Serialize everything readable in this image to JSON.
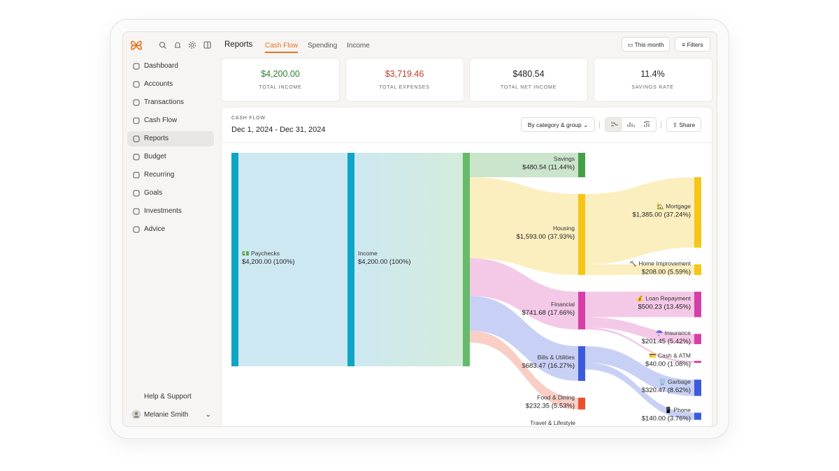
{
  "header": {
    "title": "Reports",
    "tabs": [
      {
        "label": "Cash Flow",
        "active": true
      },
      {
        "label": "Spending",
        "active": false
      },
      {
        "label": "Income",
        "active": false
      }
    ],
    "buttons": [
      "This month",
      "Filters"
    ]
  },
  "sidebar": {
    "items": [
      {
        "label": "Dashboard",
        "active": false
      },
      {
        "label": "Accounts",
        "active": false
      },
      {
        "label": "Transactions",
        "active": false
      },
      {
        "label": "Cash Flow",
        "active": false
      },
      {
        "label": "Reports",
        "active": true
      },
      {
        "label": "Budget",
        "active": false
      },
      {
        "label": "Recurring",
        "active": false
      },
      {
        "label": "Goals",
        "active": false
      },
      {
        "label": "Investments",
        "active": false
      },
      {
        "label": "Advice",
        "active": false
      }
    ],
    "help": "Help & Support",
    "user": "Melanie Smith"
  },
  "stats": [
    {
      "value": "$4,200.00",
      "label": "TOTAL INCOME",
      "color": "#2e7d32"
    },
    {
      "value": "$3,719.46",
      "label": "TOTAL EXPENSES",
      "color": "#c0392b"
    },
    {
      "value": "$480.54",
      "label": "TOTAL NET INCOME",
      "color": "#222222"
    },
    {
      "value": "11.4%",
      "label": "SAVINGS RATE",
      "color": "#222222"
    }
  ],
  "cash_flow": {
    "label": "CASH FLOW",
    "date_range": "Dec 1, 2024 - Dec 31, 2024",
    "group_by": "By category & group",
    "share": "Share",
    "sources": [
      {
        "name": "💵 Paychecks",
        "amount": 4200,
        "label": "$4,200.00 (100%)"
      }
    ],
    "total": {
      "name": "Income",
      "amount": 4200,
      "label": "$4,200.00 (100%)"
    },
    "categories": [
      {
        "name": "Savings",
        "amount": 480.54,
        "label": "$480.54 (11.44%)",
        "color": "#43a047",
        "groups": []
      },
      {
        "name": "Housing",
        "amount": 1593,
        "label": "$1,593.00 (37.93%)",
        "color": "#f5c518",
        "groups": [
          {
            "name": "🏡 Mortgage",
            "amount": 1385,
            "label": "$1,385.00 (37.24%)"
          },
          {
            "name": "🔨 Home Improvement",
            "amount": 208,
            "label": "$208.00 (5.59%)"
          }
        ]
      },
      {
        "name": "Financial",
        "amount": 741.68,
        "label": "$741.68 (17.66%)",
        "color": "#d63ea8",
        "groups": [
          {
            "name": "💰 Loan Repayment",
            "amount": 500.23,
            "label": "$500.23 (13.45%)"
          },
          {
            "name": "☂️ Insurance",
            "amount": 201.45,
            "label": "$201.45 (5.42%)"
          },
          {
            "name": "💳 Cash & ATM",
            "amount": 40,
            "label": "$40.00 (1.08%)"
          }
        ]
      },
      {
        "name": "Bills & Utilities",
        "amount": 683.47,
        "label": "$683.47 (16.27%)",
        "color": "#3b5bdb",
        "groups": [
          {
            "name": "🗑️ Garbage",
            "amount": 320.47,
            "label": "$320.47 (8.62%)"
          },
          {
            "name": "📱 Phone",
            "amount": 140,
            "label": "$140.00 (3.76%)"
          }
        ]
      },
      {
        "name": "Food & Dining",
        "amount": 232.35,
        "label": "$232.35 (5.53%)",
        "color": "#e8502e",
        "groups": []
      },
      {
        "name": "Travel & Lifestyle",
        "color": "#9c3fc0",
        "groups": []
      }
    ]
  }
}
